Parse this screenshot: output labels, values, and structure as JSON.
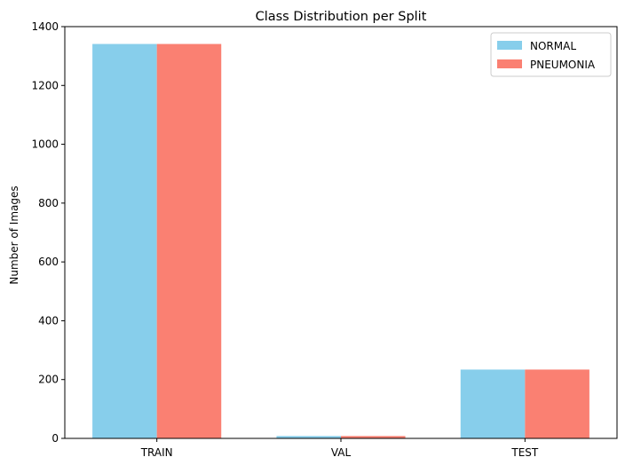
{
  "chart_data": {
    "type": "bar",
    "title": "Class Distribution per Split",
    "xlabel": "",
    "ylabel": "Number of Images",
    "categories": [
      "TRAIN",
      "VAL",
      "TEST"
    ],
    "series": [
      {
        "name": "NORMAL",
        "values": [
          1341,
          8,
          234
        ],
        "color": "#87ceeb"
      },
      {
        "name": "PNEUMONIA",
        "values": [
          1341,
          8,
          234
        ],
        "color": "#fa8072"
      }
    ],
    "ylim": [
      0,
      1400
    ],
    "yticks": [
      0,
      200,
      400,
      600,
      800,
      1000,
      1200,
      1400
    ],
    "grid": false,
    "legend_position": "top-right"
  }
}
